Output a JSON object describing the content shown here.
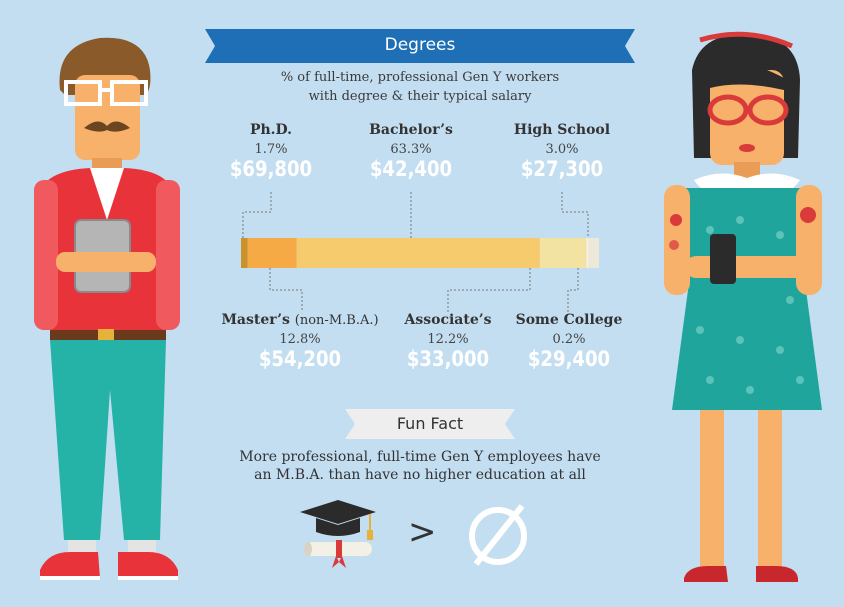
{
  "header": {
    "title": "Degrees",
    "subtitle_line1": "% of full-time, professional Gen Y workers",
    "subtitle_line2": "with degree & their typical salary"
  },
  "top_labels": [
    {
      "name": "Ph.D.",
      "pct": "1.7%",
      "salary": "$69,800"
    },
    {
      "name": "Bachelor’s",
      "pct": "63.3%",
      "salary": "$42,400"
    },
    {
      "name": "High School",
      "pct": "3.0%",
      "salary": "$27,300"
    }
  ],
  "bottom_labels": [
    {
      "name": "Master’s",
      "suffix": "(non-M.B.A.)",
      "pct": "12.8%",
      "salary": "$54,200"
    },
    {
      "name": "Associate’s",
      "pct": "12.2%",
      "salary": "$33,000"
    },
    {
      "name": "Some College",
      "pct": "0.2%",
      "salary": "$29,400"
    }
  ],
  "bar_segments": [
    {
      "label": "Ph.D.",
      "value": 1.7,
      "color": "#c8932a"
    },
    {
      "label": "Master’s",
      "value": 12.8,
      "color": "#f5aa45"
    },
    {
      "label": "Bachelor’s",
      "value": 63.3,
      "color": "#f5cb6e"
    },
    {
      "label": "Associate’s",
      "value": 12.2,
      "color": "#f3e3a3"
    },
    {
      "label": "Some College",
      "value": 0.2,
      "color": "#ffffff"
    },
    {
      "label": "High School",
      "value": 3.0,
      "color": "#ede8d8"
    }
  ],
  "fun_fact": {
    "title": "Fun Fact",
    "line1": "More professional, full-time Gen Y employees have",
    "line2": "an M.B.A. than have no higher education at all",
    "comparison_symbol": ">"
  },
  "colors": {
    "background": "#c3def1",
    "banner": "#1f6fb6",
    "man_shirt": "#e8333a",
    "man_pants": "#25b3a8",
    "woman_dress": "#1fa59c"
  }
}
